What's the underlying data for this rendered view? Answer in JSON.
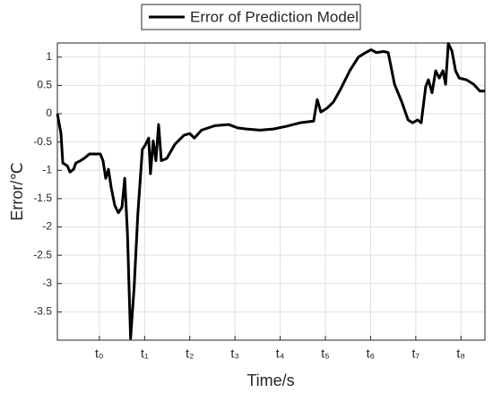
{
  "chart_data": {
    "type": "line",
    "xlabel": "Time/s",
    "ylabel": "Error/℃",
    "x": [
      0.07,
      0.15,
      0.19,
      0.29,
      0.35,
      0.43,
      0.48,
      0.58,
      0.66,
      0.72,
      0.78,
      1.02,
      1.08,
      1.14,
      1.2,
      1.26,
      1.34,
      1.42,
      1.5,
      1.56,
      1.62,
      1.69,
      1.77,
      1.85,
      1.95,
      2.01,
      2.09,
      2.13,
      2.19,
      2.25,
      2.31,
      2.37,
      2.49,
      2.67,
      2.87,
      3.0,
      3.1,
      3.26,
      3.56,
      3.86,
      4.06,
      4.26,
      4.55,
      4.85,
      5.15,
      5.44,
      5.74,
      5.82,
      5.9,
      6.04,
      6.18,
      6.34,
      6.54,
      6.73,
      6.89,
      7.01,
      7.13,
      7.29,
      7.39,
      7.53,
      7.69,
      7.83,
      7.93,
      8.04,
      8.12,
      8.22,
      8.28,
      8.36,
      8.44,
      8.52,
      8.6,
      8.66,
      8.72,
      8.8,
      8.88,
      8.96,
      9.12,
      9.28,
      9.42,
      9.53
    ],
    "series": [
      {
        "name": "Error of Prediction Model",
        "color": "#000000",
        "values": [
          0,
          -0.35,
          -0.87,
          -0.92,
          -1.03,
          -0.98,
          -0.87,
          -0.83,
          -0.79,
          -0.75,
          -0.71,
          -0.71,
          -0.83,
          -1.14,
          -0.98,
          -1.3,
          -1.62,
          -1.75,
          -1.65,
          -1.14,
          -2.1,
          -3.97,
          -3.05,
          -1.78,
          -0.63,
          -0.56,
          -0.43,
          -1.06,
          -0.48,
          -0.83,
          -0.19,
          -0.83,
          -0.79,
          -0.54,
          -0.38,
          -0.35,
          -0.43,
          -0.29,
          -0.21,
          -0.19,
          -0.25,
          -0.27,
          -0.29,
          -0.27,
          -0.22,
          -0.16,
          -0.13,
          0.25,
          0.03,
          0.1,
          0.21,
          0.44,
          0.76,
          1.0,
          1.08,
          1.13,
          1.08,
          1.1,
          1.08,
          0.52,
          0.21,
          -0.11,
          -0.16,
          -0.11,
          -0.16,
          0.48,
          0.6,
          0.37,
          0.76,
          0.63,
          0.76,
          0.52,
          1.24,
          1.11,
          0.76,
          0.63,
          0.6,
          0.52,
          0.4,
          0.4
        ]
      }
    ],
    "xlim": [
      0.07,
      9.53
    ],
    "xticks": [
      {
        "value": 1,
        "label": "t₀"
      },
      {
        "value": 2,
        "label": "t₁"
      },
      {
        "value": 3,
        "label": "t₂"
      },
      {
        "value": 4,
        "label": "t₃"
      },
      {
        "value": 5,
        "label": "t₄"
      },
      {
        "value": 6,
        "label": "t₅"
      },
      {
        "value": 7,
        "label": "t₆"
      },
      {
        "value": 8,
        "label": "t₇"
      },
      {
        "value": 9,
        "label": "t₈"
      }
    ],
    "ylim": [
      -4,
      1.25
    ],
    "yticks": [
      -3.5,
      -3,
      -2.5,
      -2,
      -1.5,
      -1,
      -0.5,
      0,
      0.5,
      1
    ],
    "grid": true,
    "legend": "top"
  }
}
